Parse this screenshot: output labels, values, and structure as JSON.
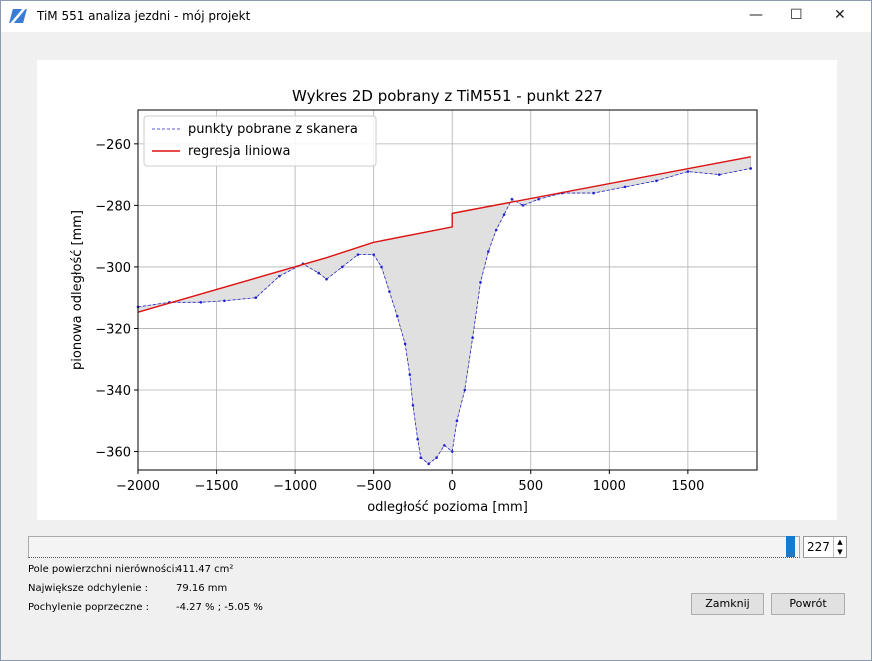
{
  "window": {
    "title": "TiM 551 analiza jezdni - mój projekt"
  },
  "chart_data": {
    "type": "line",
    "title": "Wykres 2D pobrany z TiM551 - punkt 227",
    "x_label": "odległość pozioma [mm]",
    "y_label": "pionowa odległość [mm]",
    "xlim": [
      -2000,
      1940
    ],
    "ylim": [
      -366,
      -249
    ],
    "xticks": [
      {
        "value": -2000,
        "label": "−2000"
      },
      {
        "value": -1500,
        "label": "−1500"
      },
      {
        "value": -1000,
        "label": "−1000"
      },
      {
        "value": -500,
        "label": "−500"
      },
      0,
      500,
      1000,
      1500
    ],
    "yticks": [
      {
        "value": -360,
        "label": "−360"
      },
      {
        "value": -340,
        "label": "−340"
      },
      {
        "value": -320,
        "label": "−320"
      },
      {
        "value": -300,
        "label": "−300"
      },
      {
        "value": -280,
        "label": "−280"
      },
      {
        "value": -260,
        "label": "−260"
      }
    ],
    "grid": true,
    "legend": "upper left",
    "fill_color": "#e0e0e0",
    "series": [
      {
        "name": "punkty pobrane z skanera",
        "color": "#2222cc",
        "x": [
          -2000,
          -1800,
          -1600,
          -1450,
          -1250,
          -1100,
          -950,
          -850,
          -800,
          -700,
          -600,
          -500,
          -450,
          -400,
          -350,
          -300,
          -270,
          -250,
          -220,
          -200,
          -150,
          -100,
          -50,
          0,
          30,
          80,
          130,
          180,
          230,
          280,
          330,
          380,
          450,
          550,
          700,
          900,
          1100,
          1300,
          1500,
          1700,
          1900
        ],
        "values": [
          -313,
          -311.5,
          -311.5,
          -311,
          -310,
          -303,
          -299,
          -302,
          -304,
          -300,
          -296,
          -296,
          -300,
          -308,
          -316,
          -325,
          -335,
          -345,
          -356,
          -362,
          -364,
          -362,
          -358,
          -360,
          -350,
          -340,
          -323,
          -305,
          -295,
          -288,
          -283,
          -278,
          -280,
          -278,
          -276,
          -276,
          -274,
          -272,
          -269,
          -270,
          -268
        ]
      },
      {
        "name": "regresja liniowa",
        "color": "#dd1111",
        "x": [
          -2000,
          -800,
          -500,
          0,
          0,
          1900
        ],
        "values": [
          -314.7,
          -297,
          -292,
          -287,
          -282.6,
          -264.2
        ]
      }
    ]
  },
  "controls": {
    "point": "227",
    "info": [
      {
        "label": "Pole powierzchni nierówności:",
        "value": "411.47 cm²"
      },
      {
        "label": "Największe odchylenie :",
        "value": "79.16 mm"
      },
      {
        "label": "Pochylenie poprzeczne :",
        "value": "-4.27 % ; -5.05 %"
      }
    ],
    "buttons": [
      "Zamknij",
      "Powrót"
    ]
  }
}
